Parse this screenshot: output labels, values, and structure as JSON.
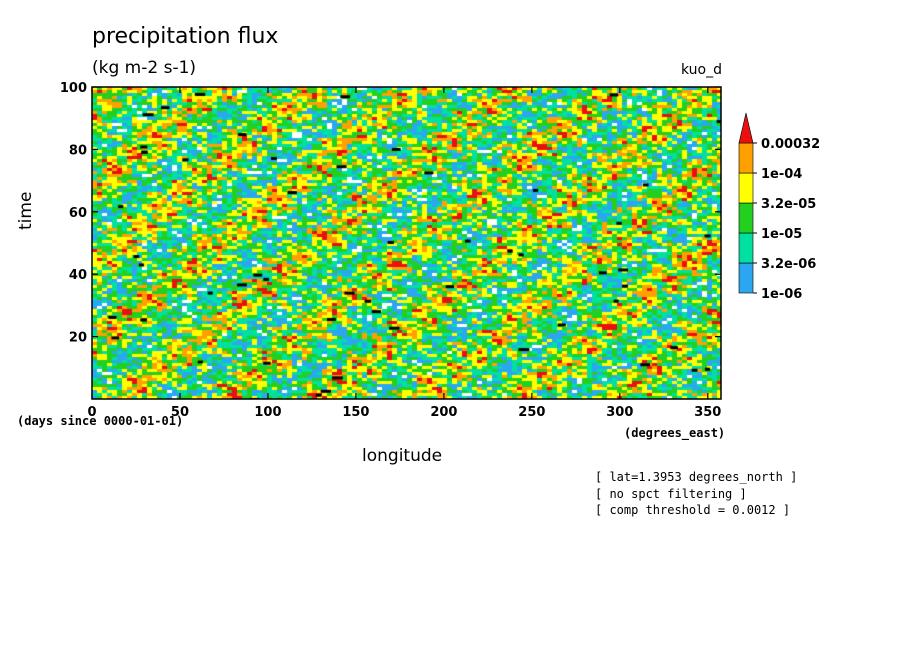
{
  "header": {
    "title": "precipitation flux",
    "units": "(kg m-2 s-1)",
    "run_name": "kuo_d"
  },
  "notes": [
    "[ lat=1.3953 degrees_north ]",
    "[ no spct filtering ]",
    "[ comp threshold = 0.0012 ]"
  ],
  "chart_data": {
    "type": "heatmap",
    "title": "precipitation flux",
    "subtitle": "(kg m-2 s-1)",
    "xlabel": "longitude",
    "ylabel": "time",
    "x_units": "(degrees_east)",
    "y_units": "(days since 0000-01-01)",
    "xlim": [
      0,
      357.5
    ],
    "ylim": [
      0,
      100
    ],
    "x_ticks": [
      "0",
      "50",
      "100",
      "150",
      "200",
      "250",
      "300",
      "350"
    ],
    "x_tick_values": [
      0,
      50,
      100,
      150,
      200,
      250,
      300,
      350
    ],
    "y_ticks": [
      "20",
      "40",
      "60",
      "80",
      "100"
    ],
    "y_tick_values": [
      20,
      40,
      60,
      80,
      100
    ],
    "colorbar": {
      "levels": [
        "1e-06",
        "3.2e-06",
        "1e-05",
        "3.2e-05",
        "1e-04",
        "0.00032"
      ],
      "colors": [
        "#2aa7f0",
        "#00e0a0",
        "#22d020",
        "#ffff00",
        "#ffa000",
        "#e81010"
      ],
      "below_min_color": "#ffffff",
      "extend": "max"
    },
    "composite_marker_color": "#000000",
    "grid": false
  }
}
